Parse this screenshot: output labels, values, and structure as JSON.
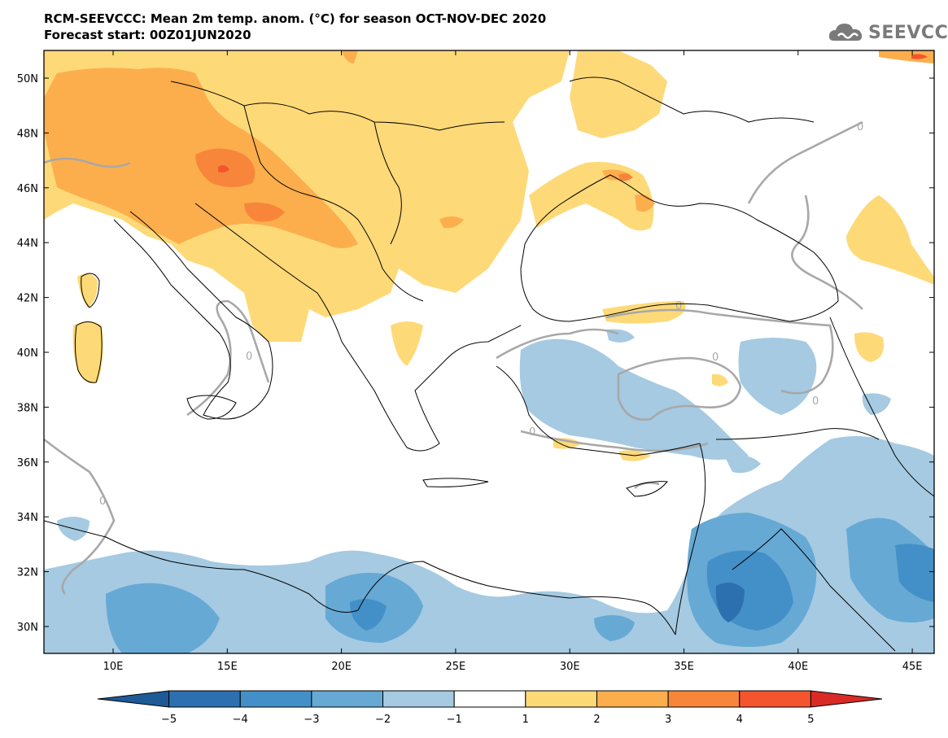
{
  "title_line1": "RCM-SEEVCCC: Mean 2m temp. anom. (°C) for season OCT-NOV-DEC 2020",
  "title_line2": "Forecast start: 00Z01JUN2020",
  "logo_text": "SEEVCCC",
  "lat_labels": [
    "50N",
    "48N",
    "46N",
    "44N",
    "42N",
    "40N",
    "38N",
    "36N",
    "34N",
    "32N",
    "30N"
  ],
  "lon_labels": [
    "10E",
    "15E",
    "20E",
    "25E",
    "30E",
    "35E",
    "40E",
    "45E"
  ],
  "contour_label": "0",
  "colorbar": {
    "colors": [
      "#1e5a96",
      "#2d70b0",
      "#4390c8",
      "#66a9d4",
      "#a5cae2",
      "#ffffff",
      "#fed978",
      "#fcae4d",
      "#f8863a",
      "#f4552e",
      "#d92a25"
    ],
    "tick_labels": [
      "−5",
      "−4",
      "−3",
      "−2",
      "−1",
      "1",
      "2",
      "3",
      "4",
      "5"
    ]
  },
  "colors": {
    "warm1": "#fed978",
    "warm2": "#fcae4d",
    "warm3": "#f8863a",
    "warm4": "#f4552e",
    "cool1": "#a5cae2",
    "cool2": "#66a9d4",
    "cool3": "#4390c8",
    "cool4": "#2d70b0",
    "cool5": "#1e5a96",
    "contour": "#a8a8a8",
    "border": "#000000"
  }
}
